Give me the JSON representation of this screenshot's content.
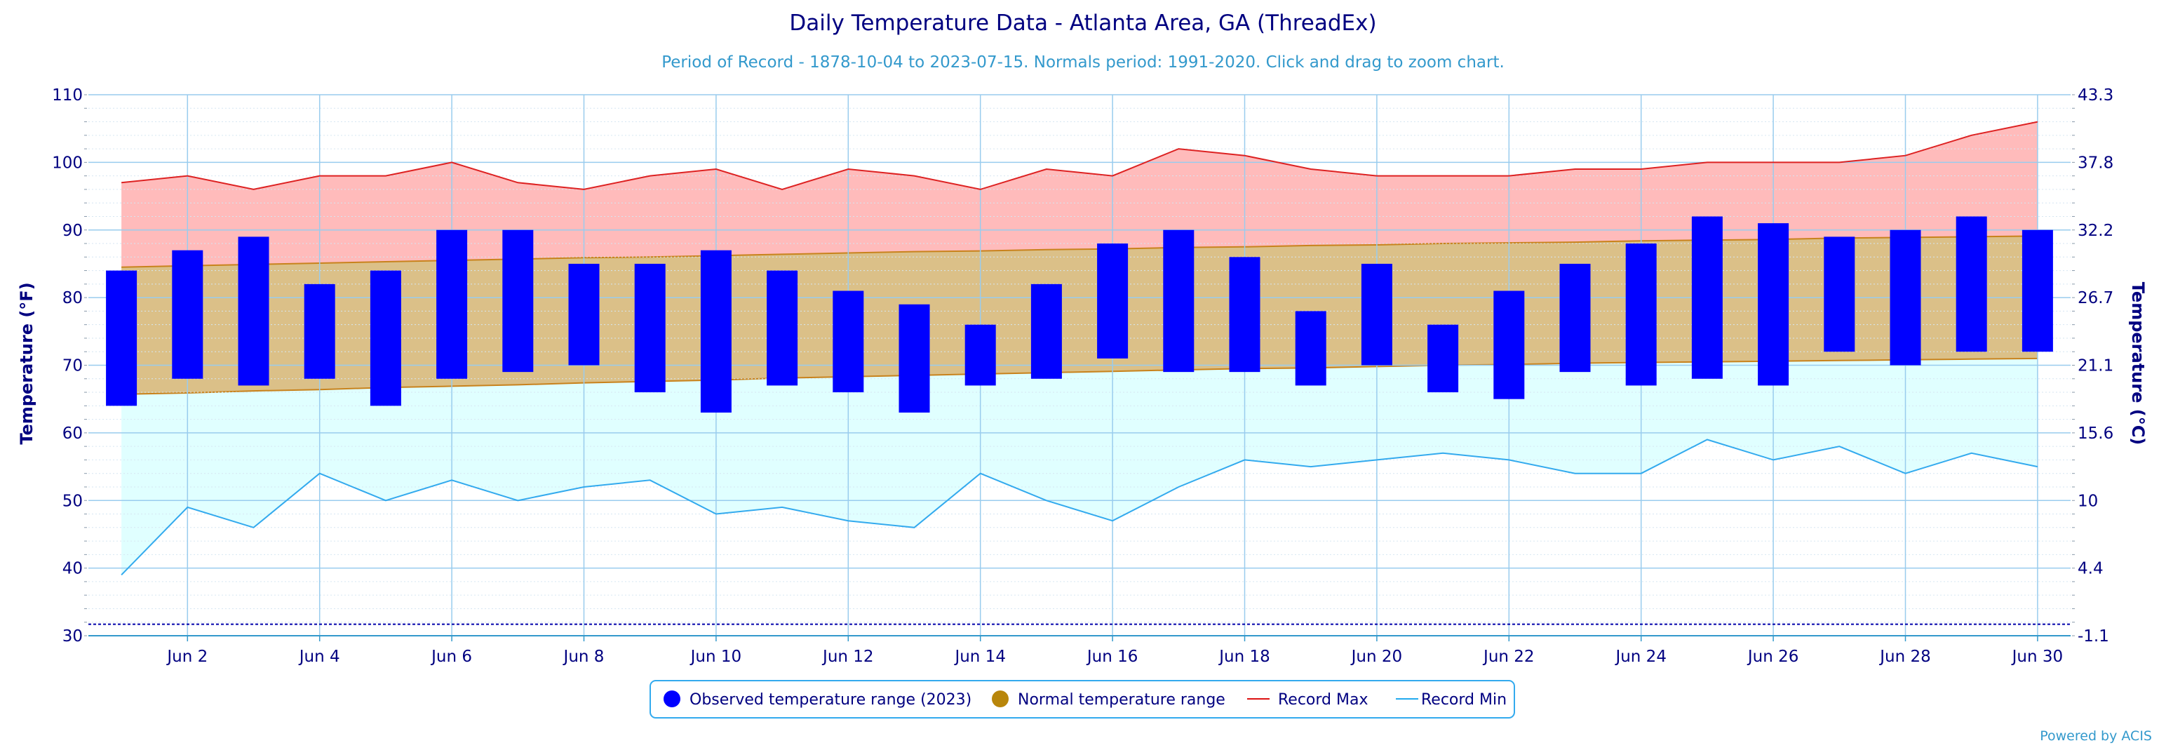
{
  "chart_data": {
    "type": "bar",
    "title": "Daily Temperature Data - Atlanta Area, GA (ThreadEx)",
    "subtitle": "Period of Record - 1878-10-04 to 2023-07-15. Normals period: 1991-2020. Click and drag to zoom chart.",
    "ylabel": "Temperature (°F)",
    "ylabel_right": "Temperature (°C)",
    "ylim": [
      30,
      110
    ],
    "xlim": [
      0.5,
      30.5
    ],
    "y_ticks": [
      "30",
      "40",
      "50",
      "60",
      "70",
      "80",
      "90",
      "100",
      "110"
    ],
    "y_ticks_right": [
      "-1.1",
      "4.4",
      "10",
      "15.6",
      "21.1",
      "26.7",
      "32.2",
      "37.8",
      "43.3"
    ],
    "x_tick_days": [
      2,
      4,
      6,
      8,
      10,
      12,
      14,
      16,
      18,
      20,
      22,
      24,
      26,
      28,
      30
    ],
    "x_tick_labels": [
      "Jun 2",
      "Jun 4",
      "Jun 6",
      "Jun 8",
      "Jun 10",
      "Jun 12",
      "Jun 14",
      "Jun 16",
      "Jun 18",
      "Jun 20",
      "Jun 22",
      "Jun 24",
      "Jun 26",
      "Jun 28",
      "Jun 30"
    ],
    "days": [
      1,
      2,
      3,
      4,
      5,
      6,
      7,
      8,
      9,
      10,
      11,
      12,
      13,
      14,
      15,
      16,
      17,
      18,
      19,
      20,
      21,
      22,
      23,
      24,
      25,
      26,
      27,
      28,
      29,
      30
    ],
    "series": [
      {
        "name": "Observed temperature range (2023)",
        "type": "range-bar",
        "high": [
          84,
          87,
          89,
          82,
          84,
          90,
          90,
          85,
          85,
          87,
          84,
          81,
          79,
          76,
          82,
          88,
          90,
          86,
          78,
          85,
          76,
          81,
          85,
          88,
          92,
          91,
          89,
          90,
          92,
          90
        ],
        "low": [
          64,
          68,
          67,
          68,
          64,
          68,
          69,
          70,
          66,
          63,
          67,
          66,
          63,
          67,
          68,
          71,
          69,
          69,
          67,
          70,
          66,
          65,
          69,
          67,
          68,
          67,
          72,
          70,
          72,
          72
        ]
      },
      {
        "name": "Normal temperature range",
        "type": "range-area",
        "high": [
          84.5,
          84.7,
          84.9,
          85.1,
          85.3,
          85.5,
          85.7,
          85.9,
          86.0,
          86.2,
          86.4,
          86.6,
          86.8,
          86.9,
          87.1,
          87.2,
          87.4,
          87.5,
          87.7,
          87.8,
          88.0,
          88.1,
          88.2,
          88.4,
          88.5,
          88.6,
          88.8,
          88.9,
          89.0,
          89.1
        ],
        "low": [
          65.7,
          65.9,
          66.2,
          66.4,
          66.7,
          66.9,
          67.1,
          67.4,
          67.6,
          67.8,
          68.1,
          68.3,
          68.5,
          68.7,
          68.9,
          69.1,
          69.3,
          69.5,
          69.6,
          69.8,
          70.0,
          70.1,
          70.3,
          70.4,
          70.5,
          70.6,
          70.7,
          70.8,
          70.9,
          71.0
        ]
      },
      {
        "name": "Record Max",
        "type": "line",
        "values": [
          97,
          98,
          96,
          98,
          98,
          100,
          97,
          96,
          98,
          99,
          96,
          99,
          98,
          96,
          99,
          98,
          102,
          101,
          99,
          98,
          98,
          98,
          99,
          99,
          100,
          100,
          100,
          101,
          104,
          106
        ]
      },
      {
        "name": "Record Min",
        "type": "line",
        "values": [
          39,
          49,
          46,
          54,
          50,
          53,
          50,
          52,
          53,
          48,
          49,
          47,
          46,
          54,
          50,
          47,
          52,
          56,
          55,
          56,
          57,
          56,
          54,
          54,
          59,
          56,
          58,
          54,
          57,
          55
        ]
      }
    ],
    "grid": true,
    "legend_position": "bottom-center"
  },
  "legend": [
    {
      "label": "Observed temperature range (2023)",
      "marker": "circle",
      "color": "#0000ff"
    },
    {
      "label": "Normal temperature range",
      "marker": "circle",
      "color": "#b8860b"
    },
    {
      "label": "Record Max",
      "marker": "line",
      "color": "#dd1111"
    },
    {
      "label": "Record Min",
      "marker": "line",
      "color": "#22aaee"
    }
  ],
  "credit": "Powered by ACIS",
  "colors": {
    "observed": "#0000ff",
    "normal_fill": "#dbc088",
    "normal_line": "#c8821c",
    "record_max_fill": "#ffbbbb",
    "record_max_line": "#dd2222",
    "record_min_fill": "#e0ffff",
    "record_min_line": "#33aaee",
    "grid": "#99ccee",
    "text": "#000080"
  }
}
